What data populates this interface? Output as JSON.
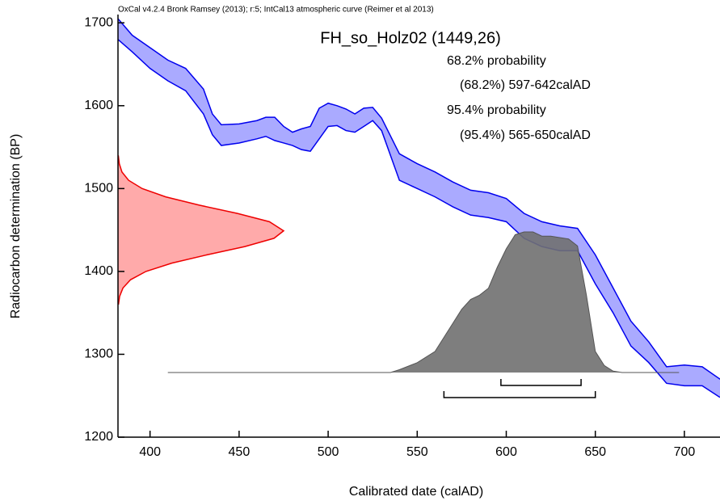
{
  "chart_data": {
    "type": "calibration",
    "header": "OxCal v4.2.4 Bronk Ramsey (2013); r:5; IntCal13 atmospheric curve (Reimer et al 2013)",
    "title": "FH_so_Holz02 (1449,26)",
    "annotations": [
      "68.2% probability",
      "(68.2%) 597-642calAD",
      "95.4% probability",
      "(95.4%) 565-650calAD"
    ],
    "x_label": "Calibrated date (calAD)",
    "y_label": "Radiocarbon determination (BP)",
    "xlim": [
      382,
      720
    ],
    "ylim": [
      1200,
      1710
    ],
    "xticks": [
      400,
      450,
      500,
      550,
      600,
      650,
      700
    ],
    "yticks": [
      1200,
      1300,
      1400,
      1500,
      1600,
      1700
    ],
    "curve": {
      "color": "#0000ee",
      "x": [
        382,
        390,
        400,
        410,
        420,
        430,
        435,
        440,
        450,
        460,
        465,
        470,
        475,
        480,
        485,
        490,
        495,
        500,
        505,
        510,
        515,
        520,
        525,
        530,
        540,
        550,
        560,
        570,
        580,
        590,
        600,
        610,
        620,
        630,
        640,
        650,
        660,
        670,
        680,
        690,
        700,
        710,
        720
      ],
      "upper": [
        1705,
        1685,
        1670,
        1655,
        1645,
        1620,
        1590,
        1577,
        1578,
        1582,
        1586,
        1586,
        1575,
        1568,
        1572,
        1575,
        1597,
        1603,
        1600,
        1596,
        1590,
        1597,
        1598,
        1585,
        1542,
        1530,
        1520,
        1508,
        1498,
        1495,
        1488,
        1470,
        1460,
        1455,
        1452,
        1420,
        1380,
        1340,
        1315,
        1285,
        1287,
        1285,
        1270
      ],
      "lower": [
        1680,
        1665,
        1645,
        1630,
        1618,
        1590,
        1565,
        1552,
        1555,
        1560,
        1563,
        1558,
        1555,
        1552,
        1547,
        1545,
        1560,
        1575,
        1576,
        1570,
        1568,
        1575,
        1582,
        1570,
        1510,
        1500,
        1490,
        1478,
        1468,
        1465,
        1460,
        1440,
        1430,
        1425,
        1425,
        1385,
        1350,
        1310,
        1290,
        1265,
        1262,
        1262,
        1248
      ]
    },
    "measurement": {
      "color": "#ee0000",
      "y": [
        1360,
        1370,
        1380,
        1390,
        1400,
        1410,
        1420,
        1430,
        1440,
        1449,
        1460,
        1470,
        1480,
        1490,
        1500,
        1510,
        1520,
        1530,
        1540
      ],
      "density": [
        0.003,
        0.01,
        0.03,
        0.076,
        0.169,
        0.325,
        0.537,
        0.766,
        0.942,
        1,
        0.914,
        0.721,
        0.491,
        0.288,
        0.146,
        0.064,
        0.024,
        0.008,
        0.002
      ]
    },
    "posterior": {
      "color": "#707070",
      "x": [
        410,
        535,
        540,
        550,
        560,
        565,
        570,
        575,
        580,
        585,
        590,
        595,
        600,
        605,
        610,
        615,
        620,
        625,
        630,
        635,
        640,
        645,
        650,
        655,
        660,
        665,
        697
      ],
      "density": [
        0,
        0,
        0.02,
        0.07,
        0.15,
        0.25,
        0.35,
        0.45,
        0.52,
        0.55,
        0.6,
        0.75,
        0.88,
        0.98,
        1,
        1,
        0.97,
        0.97,
        0.96,
        0.95,
        0.9,
        0.55,
        0.15,
        0.05,
        0.01,
        0,
        0
      ]
    },
    "ranges": [
      {
        "from": 597,
        "to": 642
      },
      {
        "from": 565,
        "to": 650
      }
    ]
  }
}
